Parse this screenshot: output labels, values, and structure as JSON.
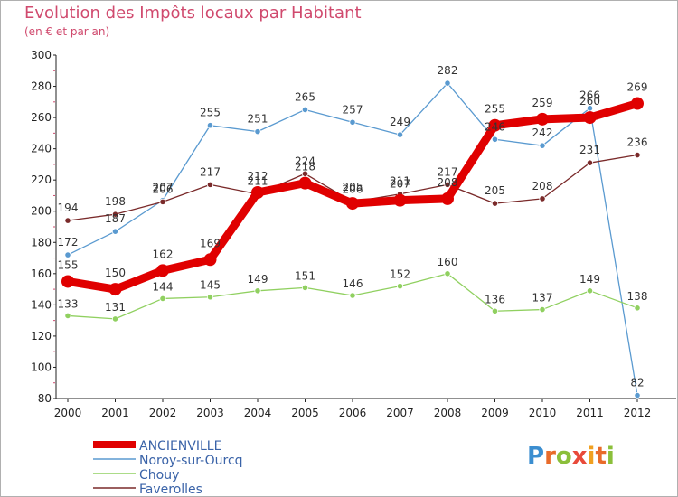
{
  "header": {
    "title": "Evolution des Impôts locaux par Habitant",
    "subtitle": "(en € et par an)"
  },
  "logo": {
    "letters": [
      "P",
      "r",
      "o",
      "x",
      "i",
      "t",
      "i"
    ],
    "colors": [
      "#3b8ed0",
      "#e86b2a",
      "#8bbf3a",
      "#e84a3a",
      "#f0a020",
      "#e86b2a",
      "#8bbf3a"
    ]
  },
  "chart_data": {
    "type": "line",
    "title": "Evolution des Impôts locaux par Habitant",
    "subtitle": "(en € et par an)",
    "xlabel": "",
    "ylabel": "",
    "ylim": [
      80,
      300
    ],
    "yticks": [
      80,
      100,
      120,
      140,
      160,
      180,
      200,
      220,
      240,
      260,
      280,
      300
    ],
    "grid": false,
    "legend_position": "bottom-left",
    "x": [
      "2000",
      "2001",
      "2002",
      "2003",
      "2004",
      "2005",
      "2006",
      "2007",
      "2008",
      "2009",
      "2010",
      "2011",
      "2012"
    ],
    "series": [
      {
        "name": "ANCIENVILLE",
        "color": "#e00000",
        "values": [
          155,
          150,
          162,
          169,
          212,
          218,
          205,
          207,
          208,
          255,
          259,
          260,
          269
        ],
        "labels": [
          "155",
          "150",
          "162",
          "169",
          "212",
          "218",
          "205",
          "207",
          "208",
          "255",
          "259",
          "260",
          "269"
        ]
      },
      {
        "name": "Noroy-sur-Ourcq",
        "color": "#5a9ad0",
        "values": [
          172,
          187,
          207,
          255,
          251,
          265,
          257,
          249,
          282,
          246,
          242,
          266,
          82
        ],
        "labels": [
          "172",
          "187",
          "207",
          "255",
          "251",
          "265",
          "257",
          "249",
          "282",
          "246",
          "242",
          "266",
          "82"
        ]
      },
      {
        "name": "Chouy",
        "color": "#90d060",
        "values": [
          133,
          131,
          144,
          145,
          149,
          151,
          146,
          152,
          160,
          136,
          137,
          149,
          138
        ],
        "labels": [
          "133",
          "131",
          "144",
          "145",
          "149",
          "151",
          "146",
          "152",
          "160",
          "136",
          "137",
          "149",
          "138"
        ]
      },
      {
        "name": "Faverolles",
        "color": "#7a2a2a",
        "values": [
          194,
          198,
          206,
          217,
          211,
          224,
          206,
          211,
          217,
          205,
          208,
          231,
          236
        ],
        "labels": [
          "194",
          "198",
          "206",
          "217",
          "211",
          "224",
          "206",
          "211",
          "217",
          "205",
          "208",
          "231",
          "236"
        ]
      }
    ]
  }
}
